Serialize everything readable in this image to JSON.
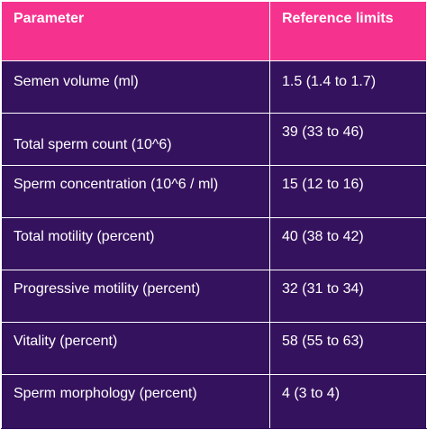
{
  "header": {
    "parameter": "Parameter",
    "reference_limits": "Reference limits"
  },
  "rows": [
    {
      "parameter": "Semen volume (ml)",
      "reference": "1.5 (1.4 to 1.7)"
    },
    {
      "parameter": "Total sperm count (10^6)",
      "reference": "39 (33 to 46)"
    },
    {
      "parameter": "Sperm concentration (10^6 / ml)",
      "reference": "15 (12 to 16)"
    },
    {
      "parameter": "Total motility (percent)",
      "reference": "40 (38 to 42)"
    },
    {
      "parameter": "Progressive motility (percent)",
      "reference": "32 (31 to 34)"
    },
    {
      "parameter": "Vitality (percent)",
      "reference": "58 (55 to 63)"
    },
    {
      "parameter": "Sperm morphology (percent)",
      "reference": "4 (3 to 4)"
    }
  ],
  "colors": {
    "header_bg": "#f5338f",
    "body_bg": "#35125e",
    "text": "#ffffff"
  }
}
